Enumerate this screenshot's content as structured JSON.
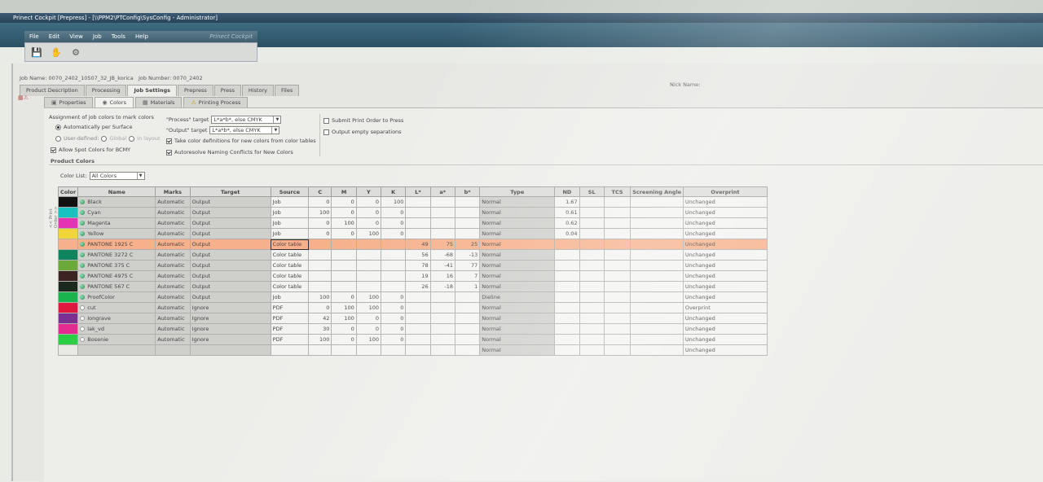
{
  "window": {
    "title": "Prinect Cockpit [Prepress] - [\\\\PPM2\\PTConfig\\SysConfig - Administrator]"
  },
  "menu": {
    "items": [
      "File",
      "Edit",
      "View",
      "Job",
      "Tools",
      "Help"
    ],
    "brand": "Prinect Cockpit"
  },
  "job": {
    "name_label": "Job Name:",
    "name": "0070_2402_10507_32_JB_korica",
    "number_label": "Job Number:",
    "number": "0070_2402",
    "nick_label": "Nick Name:"
  },
  "main_tabs": [
    "Product Description",
    "Processing",
    "Job Settings",
    "Prepress",
    "Press",
    "History",
    "Files"
  ],
  "sub_tabs": [
    "Properties",
    "Colors",
    "Materials",
    "Printing Process"
  ],
  "options": {
    "assign_title": "Assignment of job colors to mark colors",
    "auto_surface": "Automatically per Surface",
    "user_defined": "User-defined:",
    "global": "Global",
    "in_layout": "In layout",
    "allow_spot": "Allow Spot Colors for BCMY",
    "process_target_label": "\"Process\" target",
    "process_target_value": "L*a*b*, else CMYK",
    "output_target_label": "\"Output\" target",
    "output_target_value": "L*a*b*, else CMYK",
    "take_color_defs": "Take color definitions for new colors from color tables",
    "autoresolve": "Autoresolve Naming Conflicts for New Colors",
    "submit_print_order": "Submit Print Order to Press",
    "output_empty": "Output empty separations"
  },
  "product_colors": {
    "title": "Product Colors",
    "color_list_label": "Color List:",
    "color_list_value": "All Colors",
    "side_label": "<< Print Order >>",
    "columns": [
      "Color",
      "Name",
      "Marks",
      "Target",
      "Source",
      "C",
      "M",
      "Y",
      "K",
      "L*",
      "a*",
      "b*",
      "Type",
      "ND",
      "SL",
      "TCS",
      "Screening Angle",
      "Overprint"
    ],
    "rows": [
      {
        "swatch": "#111111",
        "icon": "proc",
        "name": "Black",
        "marks": "Automatic",
        "target": "Output",
        "source": "Job",
        "c": "0",
        "m": "0",
        "y": "0",
        "k": "100",
        "l": "",
        "a": "",
        "b": "",
        "type": "Normal",
        "nd": "1.67",
        "over": "Unchanged"
      },
      {
        "swatch": "#19c1c0",
        "icon": "proc",
        "name": "Cyan",
        "marks": "Automatic",
        "target": "Output",
        "source": "Job",
        "c": "100",
        "m": "0",
        "y": "0",
        "k": "0",
        "l": "",
        "a": "",
        "b": "",
        "type": "Normal",
        "nd": "0.61",
        "over": "Unchanged"
      },
      {
        "swatch": "#e534b3",
        "icon": "proc",
        "name": "Magenta",
        "marks": "Automatic",
        "target": "Output",
        "source": "Job",
        "c": "0",
        "m": "100",
        "y": "0",
        "k": "0",
        "l": "",
        "a": "",
        "b": "",
        "type": "Normal",
        "nd": "0.62",
        "over": "Unchanged"
      },
      {
        "swatch": "#f1d63a",
        "icon": "proc",
        "name": "Yellow",
        "marks": "Automatic",
        "target": "Output",
        "source": "Job",
        "c": "0",
        "m": "0",
        "y": "100",
        "k": "0",
        "l": "",
        "a": "",
        "b": "",
        "type": "Normal",
        "nd": "0.04",
        "over": "Unchanged"
      },
      {
        "swatch": "#d2153a",
        "icon": "proc",
        "name": "PANTONE 1925 C",
        "marks": "Automatic",
        "target": "Output",
        "source": "Color table",
        "c": "",
        "m": "",
        "y": "",
        "k": "",
        "l": "49",
        "a": "75",
        "b": "25",
        "type": "Normal",
        "nd": "",
        "over": "Unchanged",
        "highlight": true
      },
      {
        "swatch": "#10845e",
        "icon": "proc",
        "name": "PANTONE 3272 C",
        "marks": "Automatic",
        "target": "Output",
        "source": "Color table",
        "c": "",
        "m": "",
        "y": "",
        "k": "",
        "l": "56",
        "a": "-68",
        "b": "-13",
        "type": "Normal",
        "nd": "",
        "over": "Unchanged"
      },
      {
        "swatch": "#6aa93a",
        "icon": "proc",
        "name": "PANTONE 375 C",
        "marks": "Automatic",
        "target": "Output",
        "source": "Color table",
        "c": "",
        "m": "",
        "y": "",
        "k": "",
        "l": "78",
        "a": "-41",
        "b": "77",
        "type": "Normal",
        "nd": "",
        "over": "Unchanged"
      },
      {
        "swatch": "#3a2320",
        "icon": "proc",
        "name": "PANTONE 4975 C",
        "marks": "Automatic",
        "target": "Output",
        "source": "Color table",
        "c": "",
        "m": "",
        "y": "",
        "k": "",
        "l": "19",
        "a": "16",
        "b": "7",
        "type": "Normal",
        "nd": "",
        "over": "Unchanged"
      },
      {
        "swatch": "#1b2a1d",
        "icon": "proc",
        "name": "PANTONE 567 C",
        "marks": "Automatic",
        "target": "Output",
        "source": "Color table",
        "c": "",
        "m": "",
        "y": "",
        "k": "",
        "l": "26",
        "a": "-18",
        "b": "1",
        "type": "Normal",
        "nd": "",
        "over": "Unchanged"
      },
      {
        "swatch": "#19b44e",
        "icon": "proc",
        "name": "ProofColor",
        "marks": "Automatic",
        "target": "Output",
        "source": "Job",
        "c": "100",
        "m": "0",
        "y": "100",
        "k": "0",
        "l": "",
        "a": "",
        "b": "",
        "type": "Dieline",
        "nd": "",
        "over": "Unchanged"
      },
      {
        "swatch": "#e0173f",
        "icon": "sep",
        "name": "cut",
        "marks": "Automatic",
        "target": "Ignore",
        "source": "PDF",
        "c": "0",
        "m": "100",
        "y": "100",
        "k": "0",
        "l": "",
        "a": "",
        "b": "",
        "type": "Normal",
        "nd": "",
        "over": "Overprint"
      },
      {
        "swatch": "#7a2f93",
        "icon": "sep",
        "name": "Iongrave",
        "marks": "Automatic",
        "target": "Ignore",
        "source": "PDF",
        "c": "42",
        "m": "100",
        "y": "0",
        "k": "0",
        "l": "",
        "a": "",
        "b": "",
        "type": "Normal",
        "nd": "",
        "over": "Unchanged"
      },
      {
        "swatch": "#e32b92",
        "icon": "sep",
        "name": "lak_vd",
        "marks": "Automatic",
        "target": "Ignore",
        "source": "PDF",
        "c": "30",
        "m": "0",
        "y": "0",
        "k": "0",
        "l": "",
        "a": "",
        "b": "",
        "type": "Normal",
        "nd": "",
        "over": "Unchanged"
      },
      {
        "swatch": "#2bcf45",
        "icon": "sep",
        "name": "Bosenie",
        "marks": "Automatic",
        "target": "Ignore",
        "source": "PDF",
        "c": "100",
        "m": "0",
        "y": "100",
        "k": "0",
        "l": "",
        "a": "",
        "b": "",
        "type": "Normal",
        "nd": "",
        "over": "Unchanged"
      },
      {
        "swatch": "",
        "icon": "",
        "name": "",
        "marks": "",
        "target": "",
        "source": "",
        "c": "",
        "m": "",
        "y": "",
        "k": "",
        "l": "",
        "a": "",
        "b": "",
        "type": "Normal",
        "nd": "",
        "over": "Unchanged"
      }
    ]
  }
}
